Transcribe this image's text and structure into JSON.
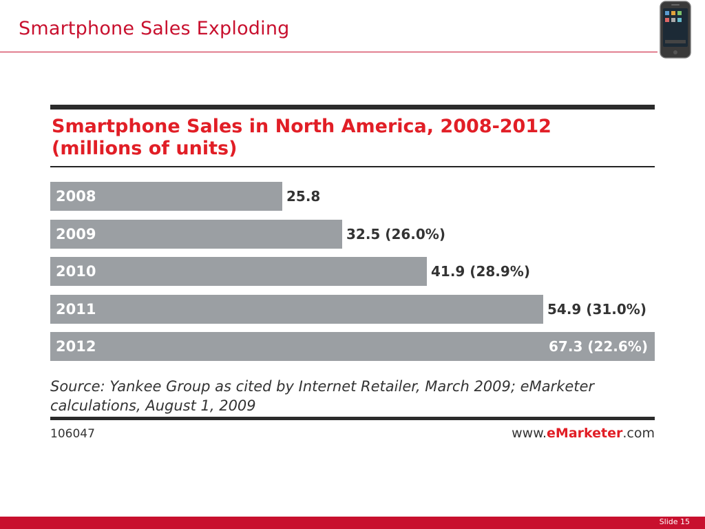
{
  "slide": {
    "title": "Smartphone Sales Exploding",
    "footer_label": "Slide 15",
    "accent_color": "#c8102e"
  },
  "phone_image": {
    "icon": "smartphone-icon"
  },
  "chart_data": {
    "type": "bar",
    "orientation": "horizontal",
    "title": "Smartphone Sales in North America, 2008-2012 (millions of units)",
    "title_line1": "Smartphone Sales in North America, 2008-2012",
    "title_line2": "(millions of units)",
    "categories": [
      "2008",
      "2009",
      "2010",
      "2011",
      "2012"
    ],
    "values": [
      25.8,
      32.5,
      41.9,
      54.9,
      67.3
    ],
    "growth_labels": [
      "",
      "(26.0%)",
      "(28.9%)",
      "(31.0%)",
      "(22.6%)"
    ],
    "value_labels": [
      "25.8",
      "32.5 (26.0%)",
      "41.9 (28.9%)",
      "54.9 (31.0%)",
      "67.3 (22.6%)"
    ],
    "xlim": [
      0,
      67.3
    ],
    "bar_color": "#9b9fa3",
    "title_color": "#e11e26",
    "source": "Source: Yankee Group as cited by Internet Retailer, March 2009; eMarketer calculations, August 1, 2009",
    "chart_id": "106047",
    "site_prefix": "www.",
    "site_brand": "eMarketer",
    "site_suffix": ".com"
  }
}
